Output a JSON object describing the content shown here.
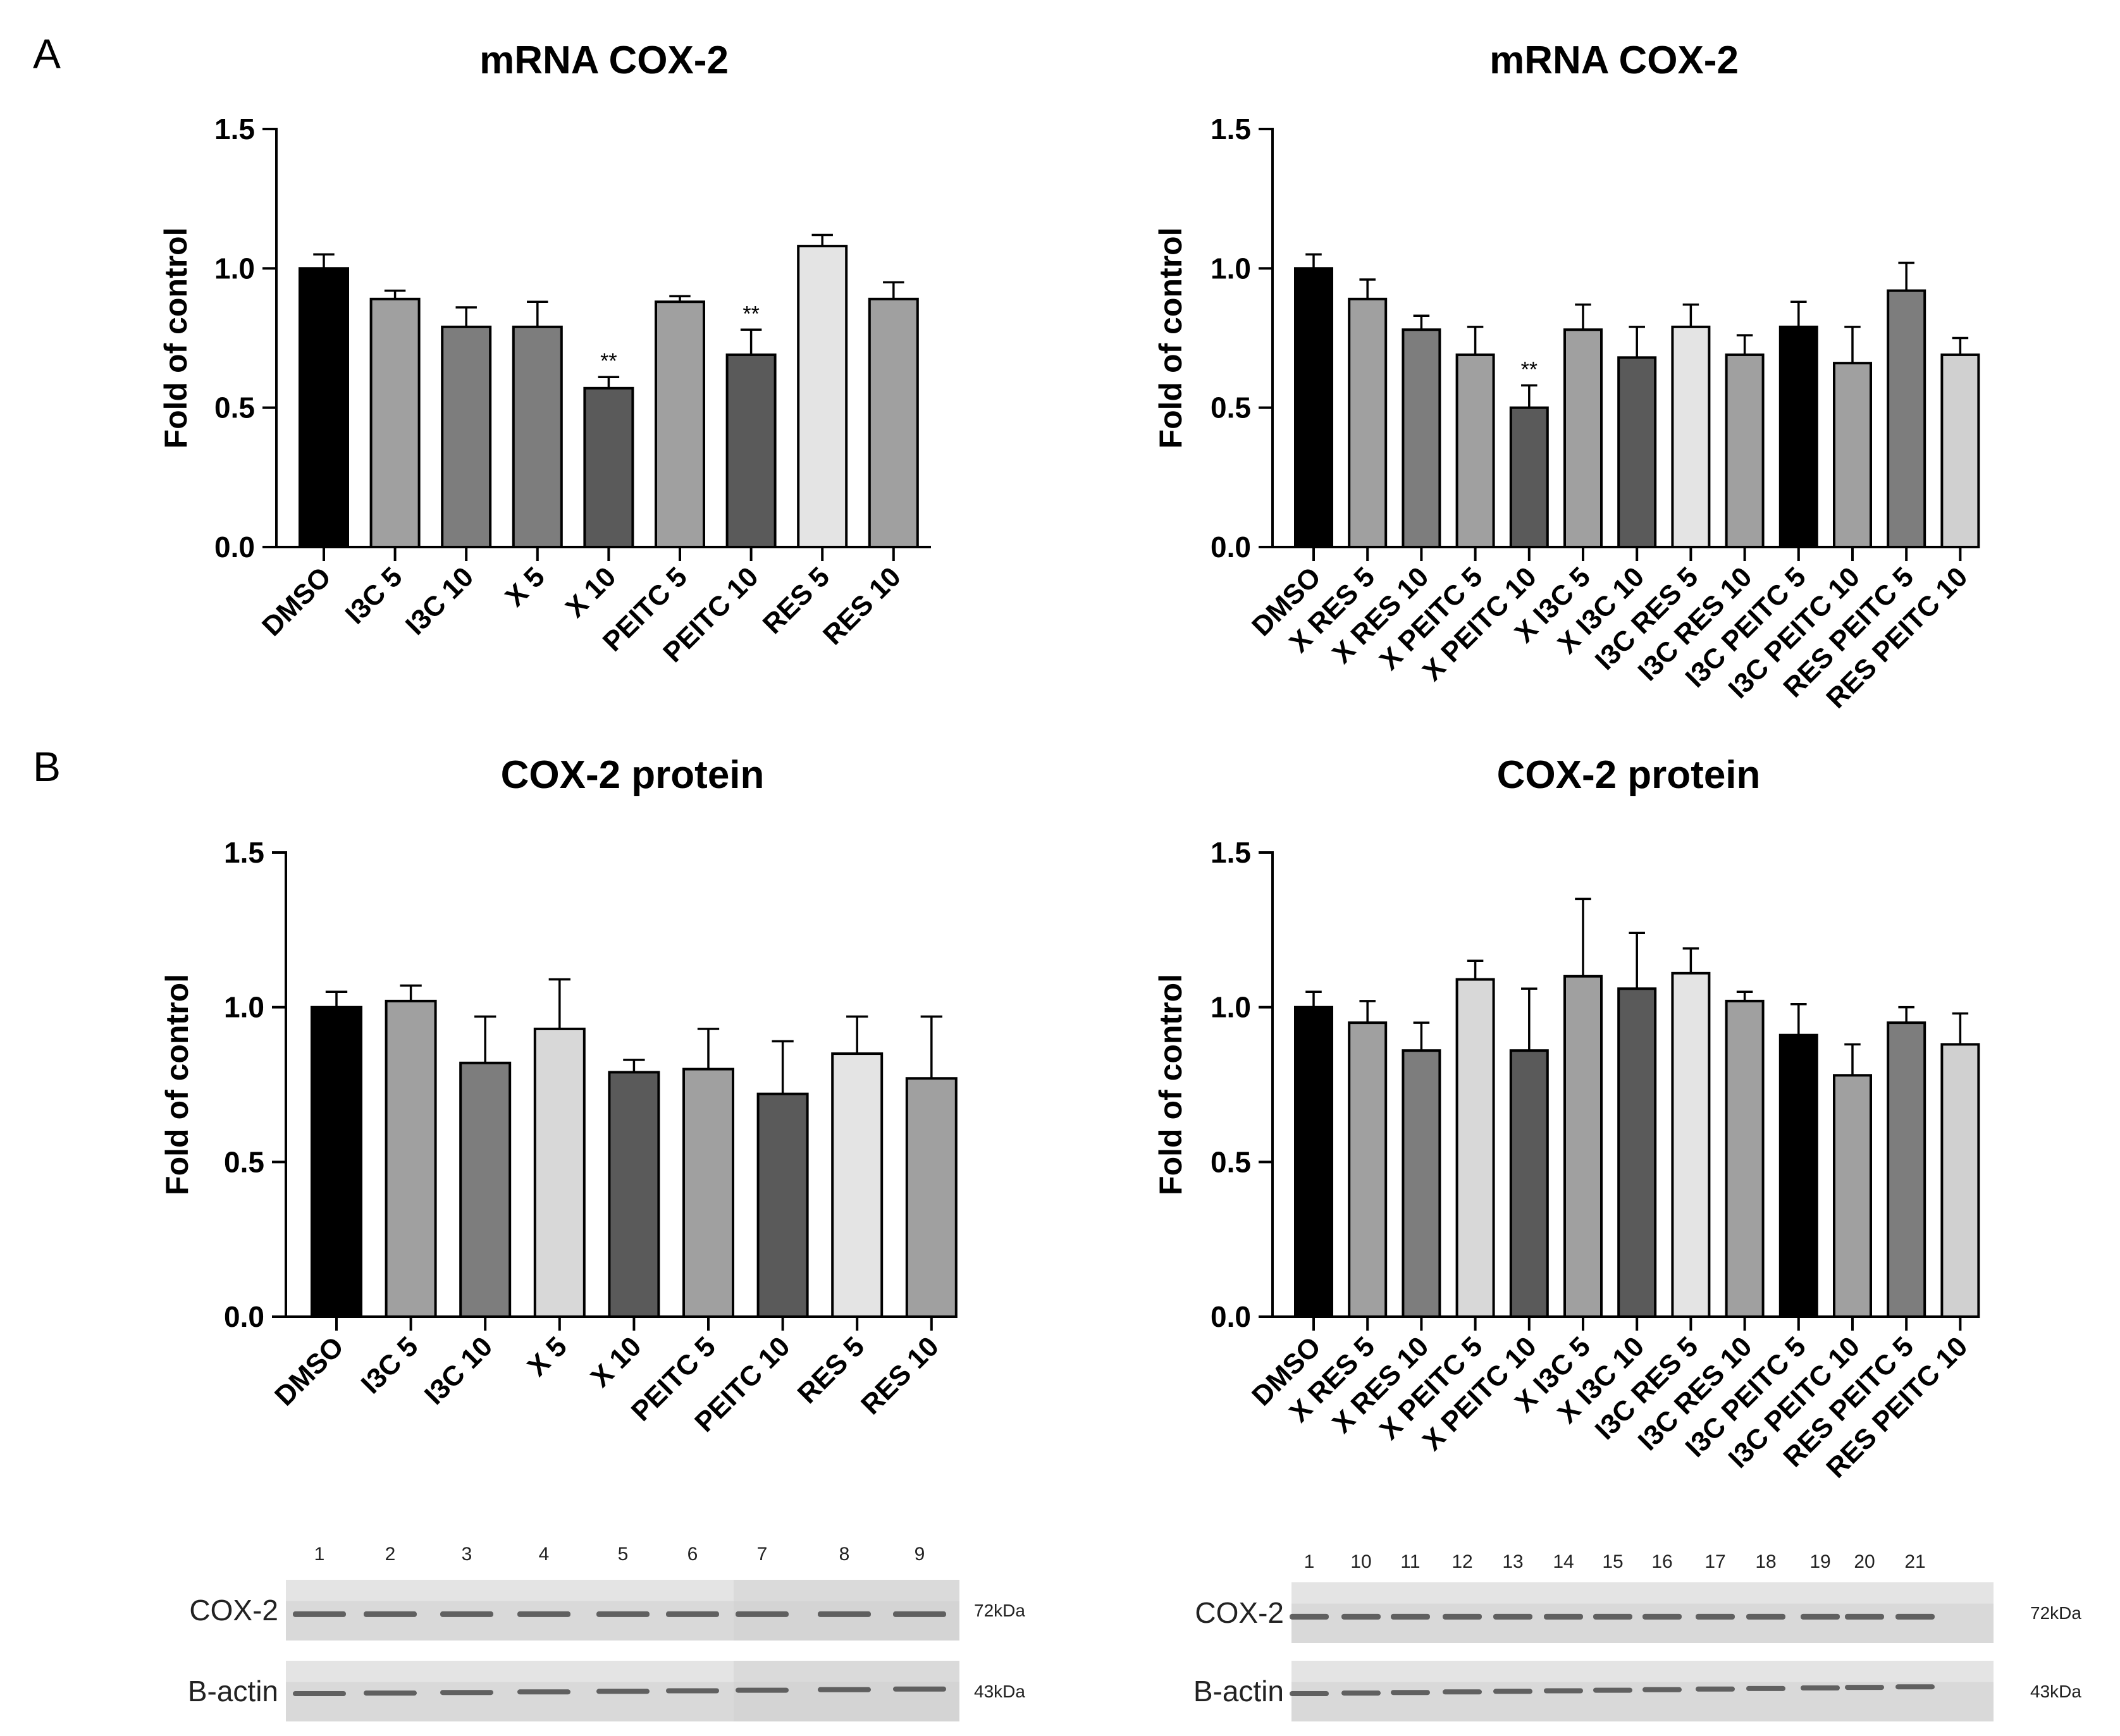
{
  "panels": {
    "a": "A",
    "b": "B"
  },
  "chart_data": [
    {
      "type": "bar",
      "title": "mRNA COX-2",
      "ylabel": "Fold of control",
      "ylim": [
        0,
        1.5
      ],
      "yticks": [
        "0.0",
        "0.5",
        "1.0",
        "1.5"
      ],
      "categories": [
        "DMSO",
        "I3C 5",
        "I3C 10",
        "X 5",
        "X 10",
        "PEITC 5",
        "PEITC 10",
        "RES 5",
        "RES 10"
      ],
      "values": [
        1.0,
        0.89,
        0.79,
        0.79,
        0.57,
        0.88,
        0.69,
        1.08,
        0.89
      ],
      "errors": [
        0.05,
        0.03,
        0.07,
        0.09,
        0.04,
        0.02,
        0.09,
        0.04,
        0.06
      ],
      "colors": [
        "#000000",
        "#a0a0a0",
        "#7d7d7d",
        "#7d7d7d",
        "#5a5a5a",
        "#a0a0a0",
        "#5a5a5a",
        "#e4e4e4",
        "#a0a0a0"
      ],
      "annotations": [
        "",
        "",
        "",
        "",
        "**",
        "",
        "**",
        "",
        ""
      ]
    },
    {
      "type": "bar",
      "title": "mRNA COX-2",
      "ylabel": "Fold of control",
      "ylim": [
        0,
        1.5
      ],
      "yticks": [
        "0.0",
        "0.5",
        "1.0",
        "1.5"
      ],
      "categories": [
        "DMSO",
        "X RES 5",
        "X RES 10",
        "X PEITC 5",
        "X PEITC 10",
        "X I3C 5",
        "X I3C 10",
        "I3C RES 5",
        "I3C RES 10",
        "I3C PEITC 5",
        "I3C PEITC 10",
        "RES PEITC 5",
        "RES PEITC 10"
      ],
      "values": [
        1.0,
        0.89,
        0.78,
        0.69,
        0.5,
        0.78,
        0.68,
        0.79,
        0.69,
        0.79,
        0.66,
        0.92,
        0.69
      ],
      "errors": [
        0.05,
        0.07,
        0.05,
        0.1,
        0.08,
        0.09,
        0.11,
        0.08,
        0.07,
        0.09,
        0.13,
        0.1,
        0.06
      ],
      "colors": [
        "#000000",
        "#a0a0a0",
        "#7d7d7d",
        "#a0a0a0",
        "#5a5a5a",
        "#a0a0a0",
        "#5a5a5a",
        "#e4e4e4",
        "#a0a0a0",
        "#000000",
        "#a0a0a0",
        "#7d7d7d",
        "#d0d0d0"
      ],
      "annotations": [
        "",
        "",
        "",
        "",
        "**",
        "",
        "",
        "",
        "",
        "",
        "",
        "",
        ""
      ]
    },
    {
      "type": "bar",
      "title": "COX-2 protein",
      "ylabel": "Fold of control",
      "ylim": [
        0,
        1.5
      ],
      "yticks": [
        "0.0",
        "0.5",
        "1.0",
        "1.5"
      ],
      "categories": [
        "DMSO",
        "I3C 5",
        "I3C 10",
        "X 5",
        "X 10",
        "PEITC 5",
        "PEITC 10",
        "RES 5",
        "RES 10"
      ],
      "values": [
        1.0,
        1.02,
        0.82,
        0.93,
        0.79,
        0.8,
        0.72,
        0.85,
        0.77
      ],
      "errors": [
        0.05,
        0.05,
        0.15,
        0.16,
        0.04,
        0.13,
        0.17,
        0.12,
        0.2
      ],
      "colors": [
        "#000000",
        "#a0a0a0",
        "#7d7d7d",
        "#d8d8d8",
        "#5a5a5a",
        "#a0a0a0",
        "#5a5a5a",
        "#e4e4e4",
        "#a0a0a0"
      ],
      "annotations": [
        "",
        "",
        "",
        "",
        "",
        "",
        "",
        "",
        ""
      ]
    },
    {
      "type": "bar",
      "title": "COX-2 protein",
      "ylabel": "Fold of control",
      "ylim": [
        0,
        1.5
      ],
      "yticks": [
        "0.0",
        "0.5",
        "1.0",
        "1.5"
      ],
      "categories": [
        "DMSO",
        "X RES 5",
        "X RES 10",
        "X PEITC 5",
        "X PEITC 10",
        "X I3C 5",
        "X I3C 10",
        "I3C RES 5",
        "I3C RES 10",
        "I3C PEITC 5",
        "I3C PEITC 10",
        "RES PEITC 5",
        "RES PEITC 10"
      ],
      "values": [
        1.0,
        0.95,
        0.86,
        1.09,
        0.86,
        1.1,
        1.06,
        1.11,
        1.02,
        0.91,
        0.78,
        0.95,
        0.88
      ],
      "errors": [
        0.05,
        0.07,
        0.09,
        0.06,
        0.2,
        0.25,
        0.18,
        0.08,
        0.03,
        0.1,
        0.1,
        0.05,
        0.1
      ],
      "colors": [
        "#000000",
        "#a0a0a0",
        "#7d7d7d",
        "#d8d8d8",
        "#5a5a5a",
        "#a0a0a0",
        "#5a5a5a",
        "#e4e4e4",
        "#a0a0a0",
        "#000000",
        "#a0a0a0",
        "#7d7d7d",
        "#d0d0d0"
      ],
      "annotations": [
        "",
        "",
        "",
        "",
        "",
        "",
        "",
        "",
        "",
        "",
        "",
        "",
        ""
      ]
    }
  ],
  "blots": [
    {
      "lanes": [
        "1",
        "2",
        "3",
        "4",
        "5",
        "6",
        "7",
        "8",
        "9"
      ],
      "rows": [
        {
          "label": "COX-2",
          "kda": "72kDa"
        },
        {
          "label": "B-actin",
          "kda": "43kDa"
        }
      ]
    },
    {
      "lanes": [
        "1",
        "10",
        "11",
        "12",
        "13",
        "14",
        "15",
        "16",
        "17",
        "18",
        "19",
        "20",
        "21"
      ],
      "rows": [
        {
          "label": "COX-2",
          "kda": "72kDa"
        },
        {
          "label": "B-actin",
          "kda": "43kDa"
        }
      ]
    }
  ]
}
